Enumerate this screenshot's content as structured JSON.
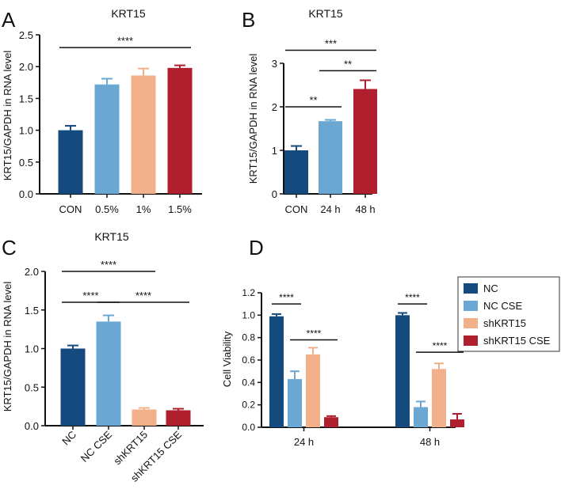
{
  "colors": {
    "navy": "#144a7d",
    "lightblue": "#6aa8d3",
    "peach": "#f1b08a",
    "crimson": "#b01f2e",
    "axis": "#111111"
  },
  "chart_data": [
    {
      "panel": "A",
      "type": "bar",
      "title": "KRT15",
      "ylabel": "KRT15/GAPDH in RNA level",
      "xlabel": "",
      "ylim": [
        0,
        2.5
      ],
      "yticks": [
        "0.0",
        "0.5",
        "1.0",
        "1.5",
        "2.0",
        "2.5"
      ],
      "categories": [
        "CON",
        "0.5%",
        "1%",
        "1.5%"
      ],
      "values": [
        1.0,
        1.72,
        1.86,
        1.98
      ],
      "errors": [
        0.07,
        0.09,
        0.11,
        0.04
      ],
      "bar_colors": [
        "#144a7d",
        "#6aa8d3",
        "#f1b08a",
        "#b01f2e"
      ],
      "significance": [
        {
          "from": 0,
          "to": 3,
          "label": "****",
          "y": 2.3
        }
      ]
    },
    {
      "panel": "B",
      "type": "bar",
      "title": "KRT15",
      "ylabel": "KRT15/GAPDH in RNA level",
      "xlabel": "",
      "ylim": [
        0,
        3
      ],
      "yticks": [
        "0",
        "1",
        "2",
        "3"
      ],
      "categories": [
        "CON",
        "24 h",
        "48 h"
      ],
      "values": [
        1.0,
        1.67,
        2.41
      ],
      "errors": [
        0.1,
        0.03,
        0.2
      ],
      "bar_colors": [
        "#144a7d",
        "#6aa8d3",
        "#b01f2e"
      ],
      "significance": [
        {
          "from": 0,
          "to": 1,
          "label": "**",
          "y": 2.0
        },
        {
          "from": 1,
          "to": 2,
          "label": "**",
          "y": 2.83
        },
        {
          "from": 0,
          "to": 2,
          "label": "***",
          "y": 3.3
        }
      ]
    },
    {
      "panel": "C",
      "type": "bar",
      "title": "KRT15",
      "ylabel": "KRT15/GAPDH in RNA level",
      "xlabel": "",
      "ylim": [
        0,
        2.0
      ],
      "yticks": [
        "0.0",
        "0.5",
        "1.0",
        "1.5",
        "2.0"
      ],
      "categories": [
        "NC",
        "NC CSE",
        "shKRT15",
        "shKRT15 CSE"
      ],
      "values": [
        1.0,
        1.35,
        0.21,
        0.2
      ],
      "errors": [
        0.04,
        0.08,
        0.02,
        0.02
      ],
      "bar_colors": [
        "#144a7d",
        "#6aa8d3",
        "#f1b08a",
        "#b01f2e"
      ],
      "significance": [
        {
          "from": 0,
          "to": 1,
          "label": "****",
          "y": 1.6
        },
        {
          "from": 1,
          "to": 3,
          "label": "****",
          "y": 1.6
        },
        {
          "from": 0,
          "to": 2,
          "label": "****",
          "y": 2.0
        }
      ]
    },
    {
      "panel": "D",
      "type": "bar",
      "title": "",
      "ylabel": "Cell Viability",
      "xlabel": "",
      "ylim": [
        0,
        1.2
      ],
      "yticks": [
        "0.0",
        "0.2",
        "0.4",
        "0.6",
        "0.8",
        "1.0",
        "1.2"
      ],
      "categories": [
        "24 h",
        "48 h"
      ],
      "series": [
        {
          "name": "NC",
          "color": "#144a7d",
          "values": [
            0.99,
            1.0
          ],
          "errors": [
            0.02,
            0.02
          ]
        },
        {
          "name": "NC CSE",
          "color": "#6aa8d3",
          "values": [
            0.43,
            0.18
          ],
          "errors": [
            0.07,
            0.05
          ]
        },
        {
          "name": "shKRT15",
          "color": "#f1b08a",
          "values": [
            0.65,
            0.52
          ],
          "errors": [
            0.06,
            0.05
          ]
        },
        {
          "name": "shKRT15 CSE",
          "color": "#b01f2e",
          "values": [
            0.09,
            0.07
          ],
          "errors": [
            0.01,
            0.05
          ]
        }
      ],
      "significance": [
        {
          "group": 0,
          "from": 0,
          "to": 1,
          "label": "****",
          "y": 1.1
        },
        {
          "group": 0,
          "from": 1,
          "to": 3,
          "label": "****",
          "y": 0.78
        },
        {
          "group": 1,
          "from": 0,
          "to": 1,
          "label": "****",
          "y": 1.1
        },
        {
          "group": 1,
          "from": 1,
          "to": 3,
          "label": "****",
          "y": 0.67
        }
      ],
      "legend": "right"
    }
  ]
}
